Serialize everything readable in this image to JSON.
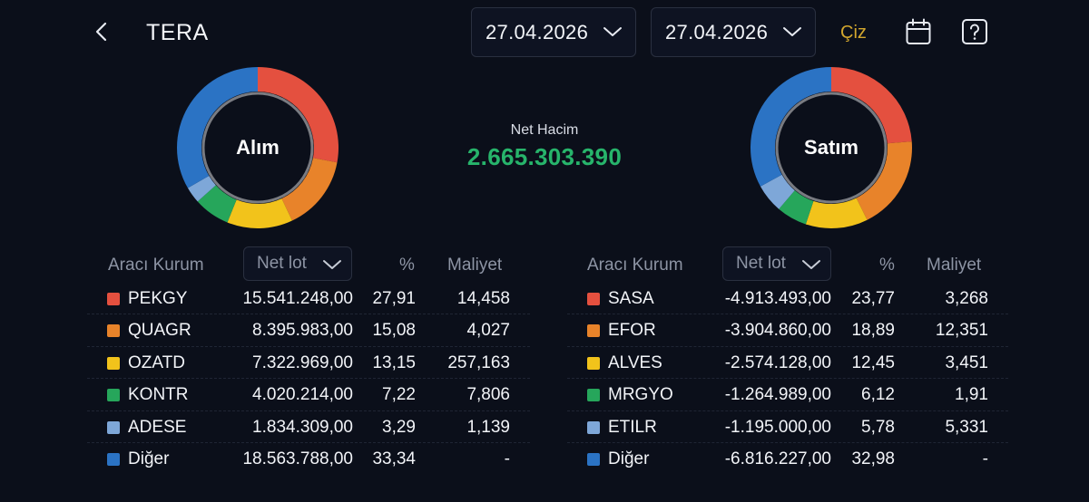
{
  "header": {
    "title": "TERA",
    "date_from": "27.04.2026",
    "date_to": "27.04.2026",
    "draw_label": "Çiz",
    "icons": {
      "back": "chevron-left-icon",
      "calendar": "calendar-icon",
      "help": "help-icon",
      "dropdown": "chevron-down-icon"
    }
  },
  "summary": {
    "net_label": "Net Hacim",
    "net_value": "2.665.303.390",
    "net_color": "#27b46b"
  },
  "buy": {
    "donut_label": "Alım",
    "columns": {
      "broker": "Aracı Kurum",
      "lot": "Net lot",
      "pct": "%",
      "cost": "Maliyet"
    },
    "rows": [
      {
        "name": "PEKGY",
        "lot": "15.541.248,00",
        "pct": "27,91",
        "cost": "14,458",
        "color": "#e4503f",
        "share": 27.91
      },
      {
        "name": "QUAGR",
        "lot": "8.395.983,00",
        "pct": "15,08",
        "cost": "4,027",
        "color": "#e8832a",
        "share": 15.08
      },
      {
        "name": "OZATD",
        "lot": "7.322.969,00",
        "pct": "13,15",
        "cost": "257,163",
        "color": "#f2c31b",
        "share": 13.15
      },
      {
        "name": "KONTR",
        "lot": "4.020.214,00",
        "pct": "7,22",
        "cost": "7,806",
        "color": "#26a65b",
        "share": 7.22
      },
      {
        "name": "ADESE",
        "lot": "1.834.309,00",
        "pct": "3,29",
        "cost": "1,139",
        "color": "#7ea7d8",
        "share": 3.29
      },
      {
        "name": "Diğer",
        "lot": "18.563.788,00",
        "pct": "33,34",
        "cost": "-",
        "color": "#2b73c4",
        "share": 33.34
      }
    ]
  },
  "sell": {
    "donut_label": "Satım",
    "columns": {
      "broker": "Aracı Kurum",
      "lot": "Net lot",
      "pct": "%",
      "cost": "Maliyet"
    },
    "rows": [
      {
        "name": "SASA",
        "lot": "-4.913.493,00",
        "pct": "23,77",
        "cost": "3,268",
        "color": "#e4503f",
        "share": 23.77
      },
      {
        "name": "EFOR",
        "lot": "-3.904.860,00",
        "pct": "18,89",
        "cost": "12,351",
        "color": "#e8832a",
        "share": 18.89
      },
      {
        "name": "ALVES",
        "lot": "-2.574.128,00",
        "pct": "12,45",
        "cost": "3,451",
        "color": "#f2c31b",
        "share": 12.45
      },
      {
        "name": "MRGYO",
        "lot": "-1.264.989,00",
        "pct": "6,12",
        "cost": "1,91",
        "color": "#26a65b",
        "share": 6.12
      },
      {
        "name": "ETILR",
        "lot": "-1.195.000,00",
        "pct": "5,78",
        "cost": "5,331",
        "color": "#7ea7d8",
        "share": 5.78
      },
      {
        "name": "Diğer",
        "lot": "-6.816.227,00",
        "pct": "32,98",
        "cost": "-",
        "color": "#2b73c4",
        "share": 32.98
      }
    ]
  }
}
